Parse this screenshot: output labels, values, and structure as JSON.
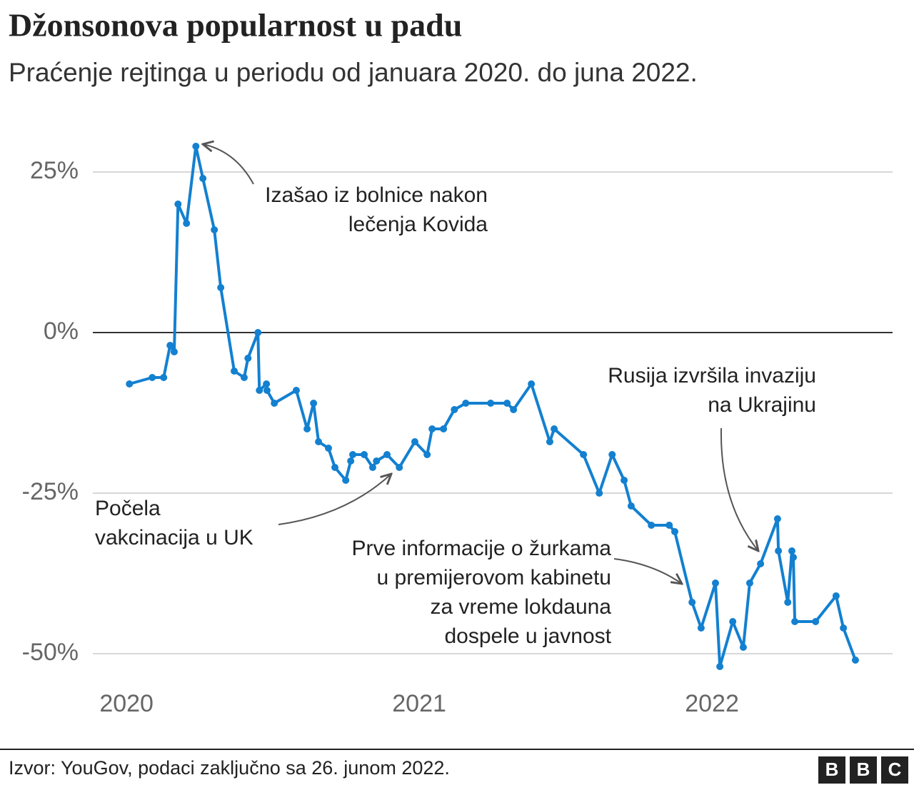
{
  "chart_data": {
    "type": "line",
    "title": "Džonsonova popularnost u padu",
    "subtitle": "Praćenje rejtinga u periodu od januara 2020. do juna 2022.",
    "source": "Izvor: YouGov, podaci zaključno sa 26. junom 2022.",
    "logo": [
      "B",
      "B",
      "C"
    ],
    "xlim": [
      2019.885,
      2022.617
    ],
    "xticks": [
      2020,
      2021,
      2022
    ],
    "ylim": [
      -54,
      30
    ],
    "yticks": [
      {
        "value": 25,
        "label": "25%"
      },
      {
        "value": 0,
        "label": "0%"
      },
      {
        "value": -25,
        "label": "-25%"
      },
      {
        "value": -50,
        "label": "-50%"
      }
    ],
    "grid": true,
    "color": "#1380d0",
    "x": [
      2020.01,
      2020.088,
      2020.127,
      2020.149,
      2020.163,
      2020.176,
      2020.205,
      2020.237,
      2020.261,
      2020.3,
      2020.322,
      2020.368,
      2020.402,
      2020.415,
      2020.449,
      2020.454,
      2020.478,
      2020.48,
      2020.505,
      2020.58,
      2020.617,
      2020.639,
      2020.656,
      2020.69,
      2020.712,
      2020.749,
      2020.766,
      2020.773,
      2020.812,
      2020.841,
      2020.854,
      2020.89,
      2020.932,
      2020.985,
      2021.027,
      2021.044,
      2021.083,
      2021.12,
      2021.159,
      2021.244,
      2021.3,
      2021.322,
      2021.383,
      2021.446,
      2021.461,
      2021.561,
      2021.615,
      2021.659,
      2021.7,
      2021.724,
      2021.793,
      2021.854,
      2021.873,
      2021.932,
      2021.963,
      2022.012,
      2022.027,
      2022.071,
      2022.107,
      2022.129,
      2022.166,
      2022.224,
      2022.227,
      2022.259,
      2022.273,
      2022.278,
      2022.283,
      2022.354,
      2022.424,
      2022.449,
      2022.49
    ],
    "values": [
      -8,
      -7,
      -7,
      -2,
      -3,
      20,
      17,
      29,
      24,
      16,
      7,
      -6,
      -7,
      -4,
      0,
      -9,
      -8,
      -9,
      -11,
      -9,
      -15,
      -11,
      -17,
      -18,
      -21,
      -23,
      -20,
      -19,
      -19,
      -21,
      -20,
      -19,
      -21,
      -17,
      -19,
      -15,
      -15,
      -12,
      -11,
      -11,
      -11,
      -12,
      -8,
      -17,
      -15,
      -19,
      -25,
      -19,
      -23,
      -27,
      -30,
      -30,
      -31,
      -42,
      -46,
      -39,
      -52,
      -45,
      -49,
      -39,
      -36,
      -29,
      -34,
      -42,
      -34,
      -35,
      -45,
      -45,
      -41,
      -46,
      -51
    ],
    "annotations": [
      {
        "text": [
          "Izašao iz bolnice nakon",
          "lečenja Kovida"
        ]
      },
      {
        "text": [
          "Počela",
          "vakcinacija u UK"
        ]
      },
      {
        "text": [
          "Prve informacije o žurkama",
          "u premijerovom kabinetu",
          "za vreme lokdauna",
          "dospele u javnost"
        ]
      },
      {
        "text": [
          "Rusija izvršila invaziju",
          "na Ukrajinu"
        ]
      }
    ]
  }
}
